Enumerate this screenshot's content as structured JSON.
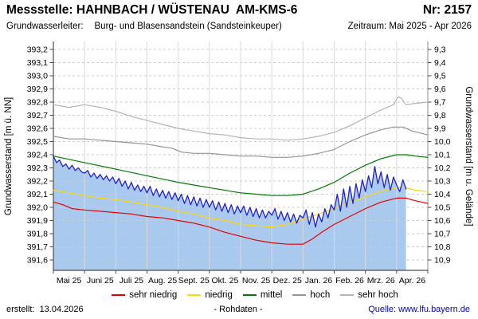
{
  "header": {
    "title": "Messstelle: HAHNBACH / WÜSTENAU  AM-KMS-6",
    "number": "Nr: 2157",
    "aquifer_label": "Grundwasserleiter:",
    "aquifer": "Burg- und Blasensandstein (Sandsteinkeuper)",
    "period": "Zeitraum: Mai 2025 - Apr 2026"
  },
  "footer": {
    "created": "erstellt:  13.04.2026",
    "center": "- Rohdaten -",
    "source": "Quelle: www.lfu.bayern.de"
  },
  "chart_data": {
    "type": "line",
    "ylabel_left": "Grundwasserstand [m ü. NN]",
    "ylabel_right": "Grundwasserstand [m u. Gelände]",
    "x_categories": [
      "Mai 25",
      "Juni 25",
      "Juli 25",
      "Aug. 25",
      "Sept. 25",
      "Okt. 25",
      "Nov. 25",
      "Dez. 25",
      "Jan. 26",
      "Feb. 26",
      "Mrz. 26",
      "Apr. 26"
    ],
    "x_range_months": [
      0,
      12
    ],
    "y_left_max": 393.2,
    "y_left_min": 391.6,
    "y_tick_step": 0.1,
    "y_left_tick_labels": [
      "393,2",
      "393,1",
      "393,0",
      "392,9",
      "392,8",
      "392,7",
      "392,6",
      "392,5",
      "392,4",
      "392,3",
      "392,2",
      "392,1",
      "392,0",
      "391,9",
      "391,8",
      "391,7",
      "391,6"
    ],
    "y_right_tick_labels": [
      "9,3",
      "9,4",
      "9,5",
      "9,6",
      "9,7",
      "9,8",
      "9,9",
      "10,0",
      "10,1",
      "10,2",
      "10,3",
      "10,4",
      "10,5",
      "10,6",
      "10,7",
      "10,8",
      "10,9"
    ],
    "grid": {
      "horizontal_dashed": true,
      "vertical_monthly": true
    },
    "legend_position": "bottom",
    "legend": [
      {
        "label": "sehr niedrig",
        "color": "#e80000"
      },
      {
        "label": "niedrig",
        "color": "#ffd800"
      },
      {
        "label": "mittel",
        "color": "#007a00"
      },
      {
        "label": "hoch",
        "color": "#949494"
      },
      {
        "label": "sehr hoch",
        "color": "#b5b5b5"
      }
    ],
    "series": [
      {
        "name": "sehr hoch",
        "color": "#b5b5b5",
        "width": 1.2,
        "x": [
          0,
          0.5,
          1,
          1.5,
          2,
          2.5,
          3,
          3.5,
          4,
          4.5,
          5,
          5.5,
          6,
          6.5,
          7,
          7.5,
          8,
          8.5,
          9,
          9.5,
          10,
          10.5,
          10.9,
          11.05,
          11.15,
          11.3,
          11.6,
          12
        ],
        "y": [
          392.78,
          392.76,
          392.78,
          392.76,
          392.73,
          392.69,
          392.66,
          392.63,
          392.6,
          392.58,
          392.56,
          392.55,
          392.53,
          392.52,
          392.52,
          392.51,
          392.52,
          392.54,
          392.57,
          392.62,
          392.68,
          392.74,
          392.78,
          392.84,
          392.83,
          392.78,
          392.79,
          392.8
        ]
      },
      {
        "name": "hoch",
        "color": "#949494",
        "width": 1.2,
        "x": [
          0,
          0.5,
          1,
          1.5,
          2,
          2.5,
          3,
          3.5,
          3.8,
          4.1,
          4.5,
          5,
          5.5,
          6,
          6.5,
          7,
          7.5,
          8,
          8.5,
          9,
          9.5,
          10,
          10.5,
          10.9,
          11.2,
          11.5,
          12
        ],
        "y": [
          392.54,
          392.52,
          392.52,
          392.51,
          392.5,
          392.49,
          392.48,
          392.46,
          392.45,
          392.42,
          392.41,
          392.41,
          392.4,
          392.39,
          392.39,
          392.38,
          392.38,
          392.39,
          392.41,
          392.44,
          392.5,
          392.55,
          392.59,
          392.61,
          392.61,
          392.58,
          392.55
        ]
      },
      {
        "name": "mittel",
        "color": "#007a00",
        "width": 1.2,
        "x": [
          0,
          1,
          2,
          3,
          4,
          5,
          6,
          6.5,
          7,
          7.5,
          8,
          8.5,
          9,
          9.5,
          10,
          10.5,
          11,
          11.3,
          11.6,
          12
        ],
        "y": [
          392.39,
          392.34,
          392.29,
          392.24,
          392.19,
          392.15,
          392.11,
          392.1,
          392.09,
          392.09,
          392.1,
          392.14,
          392.19,
          392.26,
          392.32,
          392.37,
          392.4,
          392.4,
          392.39,
          392.38
        ]
      },
      {
        "name": "niedrig",
        "color": "#ffd800",
        "width": 1.2,
        "x": [
          0,
          0.5,
          1,
          1.5,
          2,
          2.5,
          3,
          3.5,
          4,
          4.5,
          5,
          5.5,
          6,
          6.5,
          7,
          7.5,
          8,
          8.5,
          9,
          9.5,
          10,
          10.5,
          11,
          11.3,
          11.6,
          12
        ],
        "y": [
          392.13,
          392.11,
          392.09,
          392.07,
          392.06,
          392.04,
          392.02,
          392.0,
          391.97,
          391.95,
          391.92,
          391.9,
          391.87,
          391.86,
          391.85,
          391.87,
          391.91,
          391.95,
          391.99,
          392.04,
          392.08,
          392.12,
          392.15,
          392.15,
          392.13,
          392.12
        ]
      },
      {
        "name": "sehr niedrig",
        "color": "#e80000",
        "width": 1.2,
        "x": [
          0,
          0.3,
          0.6,
          1,
          1.5,
          2,
          2.5,
          3,
          3.5,
          4,
          4.5,
          5,
          5.5,
          6,
          6.5,
          7,
          7.5,
          8,
          8.3,
          8.6,
          9,
          9.5,
          10,
          10.5,
          11,
          11.3,
          11.6,
          12
        ],
        "y": [
          392.04,
          392.02,
          391.99,
          391.98,
          391.97,
          391.96,
          391.95,
          391.93,
          391.92,
          391.9,
          391.88,
          391.85,
          391.81,
          391.78,
          391.75,
          391.73,
          391.72,
          391.72,
          391.76,
          391.81,
          391.87,
          391.93,
          391.99,
          392.04,
          392.07,
          392.07,
          392.05,
          392.03
        ]
      },
      {
        "name": "Rohdaten",
        "color": "#2222cc",
        "width": 1.3,
        "fill": "#a9c9ee",
        "x_step": 0.1,
        "y": [
          392.39,
          392.34,
          392.36,
          392.31,
          392.33,
          392.29,
          392.32,
          392.28,
          392.3,
          392.27,
          392.26,
          392.28,
          392.23,
          392.26,
          392.22,
          392.25,
          392.21,
          392.24,
          392.2,
          392.23,
          392.18,
          392.22,
          392.16,
          392.2,
          392.14,
          392.19,
          392.13,
          392.17,
          392.12,
          392.16,
          392.11,
          392.16,
          392.09,
          392.14,
          392.08,
          392.13,
          392.07,
          392.12,
          392.06,
          392.11,
          392.05,
          392.1,
          392.03,
          392.09,
          392.02,
          392.08,
          392.01,
          392.07,
          392.0,
          392.06,
          392.0,
          392.05,
          391.98,
          392.04,
          391.97,
          392.03,
          391.96,
          392.02,
          391.95,
          392.01,
          391.96,
          392.01,
          391.94,
          392.0,
          391.93,
          391.99,
          391.92,
          391.98,
          391.92,
          391.97,
          391.94,
          391.99,
          391.91,
          391.97,
          391.9,
          391.96,
          391.89,
          391.95,
          391.88,
          391.94,
          391.92,
          391.98,
          391.87,
          391.96,
          391.85,
          391.95,
          391.89,
          391.99,
          391.92,
          392.02,
          391.98,
          392.1,
          391.97,
          392.14,
          392.0,
          392.16,
          392.03,
          392.18,
          392.07,
          392.21,
          392.12,
          392.24,
          392.15,
          392.31,
          392.18,
          392.27,
          392.15,
          392.25,
          392.13,
          392.23,
          392.17,
          392.12,
          392.21,
          392.14
        ]
      }
    ]
  }
}
